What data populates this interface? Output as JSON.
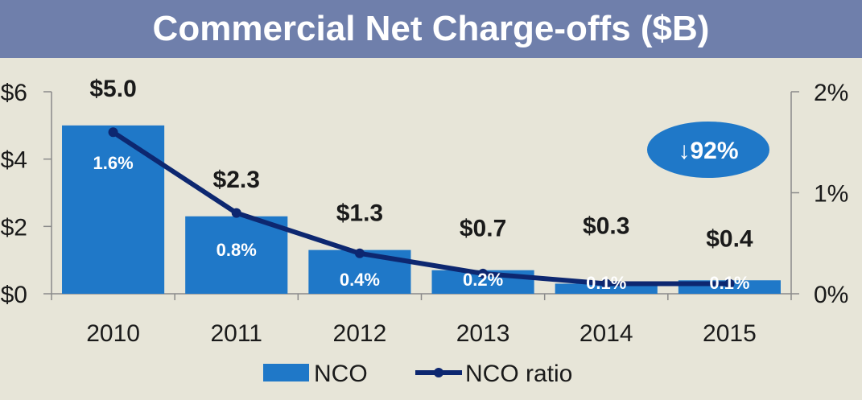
{
  "title": "Commercial Net Charge-offs ($B)",
  "chart_data": {
    "type": "bar+line",
    "categories": [
      "2010",
      "2011",
      "2012",
      "2013",
      "2014",
      "2015"
    ],
    "series": [
      {
        "name": "NCO",
        "type": "bar",
        "axis": "left",
        "values": [
          5.0,
          2.3,
          1.3,
          0.7,
          0.3,
          0.4
        ],
        "value_labels": [
          "$5.0",
          "$2.3",
          "$1.3",
          "$0.7",
          "$0.3",
          "$0.4"
        ],
        "color": "#1f78c8"
      },
      {
        "name": "NCO ratio",
        "type": "line",
        "axis": "right",
        "values": [
          1.6,
          0.8,
          0.4,
          0.2,
          0.1,
          0.1
        ],
        "value_labels": [
          "1.6%",
          "0.8%",
          "0.4%",
          "0.2%",
          "0.1%",
          "0.1%"
        ],
        "color": "#0d2770"
      }
    ],
    "left_axis": {
      "ylim": [
        0,
        6
      ],
      "ticks": [
        0,
        2,
        4,
        6
      ],
      "tick_labels": [
        "$0",
        "$2",
        "$4",
        "$6"
      ]
    },
    "right_axis": {
      "ylim": [
        0,
        2
      ],
      "ticks": [
        0,
        1,
        2
      ],
      "tick_labels": [
        "0%",
        "1%",
        "2%"
      ]
    },
    "annotation": {
      "text": "↓92%",
      "color": "#1f78c8"
    },
    "legend": {
      "placement": "bottom",
      "entries": [
        "NCO",
        "NCO ratio"
      ]
    }
  },
  "colors": {
    "title_bar": "#6f7fab",
    "background": "#e7e5d8",
    "bar": "#1f78c8",
    "line": "#0d2770",
    "axis": "#8a8a8a",
    "text": "#1a1a1a"
  }
}
